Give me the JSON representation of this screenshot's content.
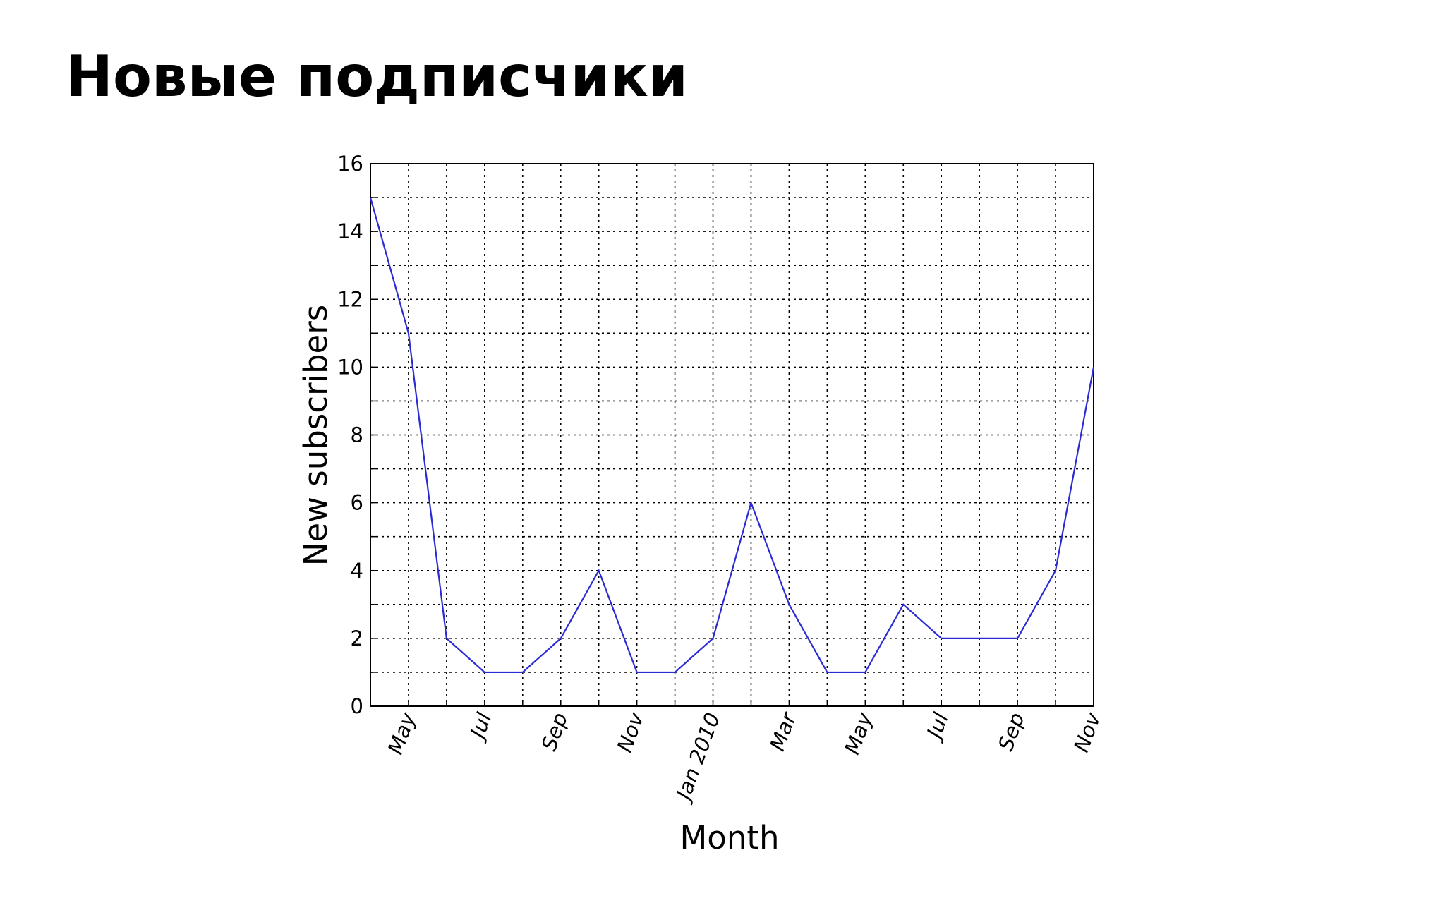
{
  "page_title": "Новые подписчики",
  "chart_data": {
    "type": "line",
    "x_label": "Month",
    "y_label": "New subscribers",
    "categories": [
      null,
      "May",
      null,
      "Jul",
      null,
      "Sep",
      null,
      "Nov",
      null,
      "Jan 2010",
      null,
      "Mar",
      null,
      "May",
      null,
      "Jul",
      null,
      "Sep",
      null,
      "Nov"
    ],
    "series": [
      {
        "color": "#2b2bd6",
        "values": [
          15,
          11,
          2,
          1,
          1,
          2,
          4,
          1,
          1,
          2,
          6,
          3,
          1,
          1,
          3,
          2,
          2,
          2,
          4,
          10
        ]
      }
    ],
    "ylim": [
      0,
      16
    ],
    "yticks": [
      0,
      2,
      4,
      6,
      8,
      10,
      12,
      14,
      16
    ],
    "yminor_ticks": [
      1,
      3,
      5,
      7,
      9,
      11,
      13,
      15
    ],
    "grid": true
  }
}
